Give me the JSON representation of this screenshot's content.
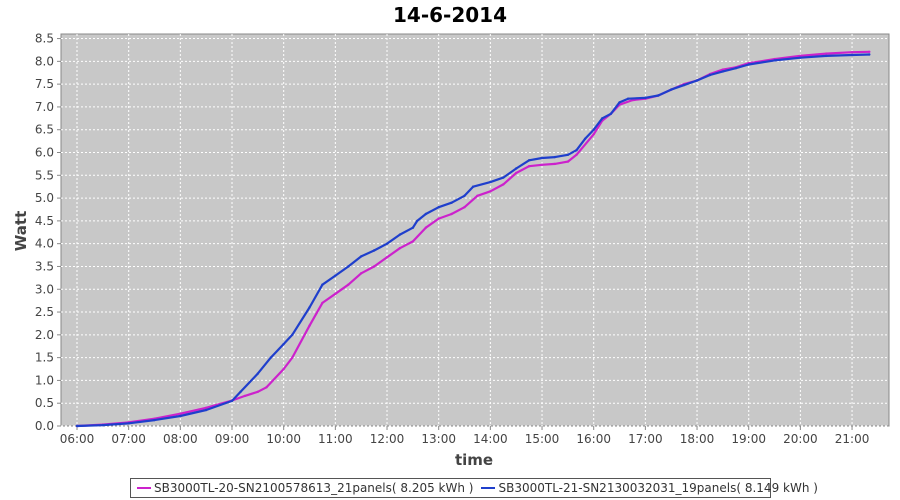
{
  "chart_data": {
    "type": "line",
    "title": "14-6-2014",
    "xlabel": "time",
    "ylabel": "Watt",
    "x_ticks": [
      "06:00",
      "07:00",
      "08:00",
      "09:00",
      "10:00",
      "11:00",
      "12:00",
      "13:00",
      "14:00",
      "15:00",
      "16:00",
      "17:00",
      "18:00",
      "19:00",
      "20:00",
      "21:00"
    ],
    "ylim": [
      0,
      8.6
    ],
    "y_ticks": [
      0.0,
      0.5,
      1.0,
      1.5,
      2.0,
      2.5,
      3.0,
      3.5,
      4.0,
      4.5,
      5.0,
      5.5,
      6.0,
      6.5,
      7.0,
      7.5,
      8.0,
      8.5
    ],
    "grid": true,
    "legend_position": "bottom",
    "plot_background": "#c8c8c8",
    "series": [
      {
        "name": "SB3000TL-20-SN2100578613_21panels( 8.205 kWh )",
        "color": "#cc22cc",
        "points": [
          [
            "06:00",
            0.0
          ],
          [
            "06:30",
            0.03
          ],
          [
            "07:00",
            0.08
          ],
          [
            "07:30",
            0.16
          ],
          [
            "08:00",
            0.27
          ],
          [
            "08:30",
            0.4
          ],
          [
            "09:00",
            0.56
          ],
          [
            "09:15",
            0.66
          ],
          [
            "09:30",
            0.75
          ],
          [
            "09:40",
            0.85
          ],
          [
            "10:00",
            1.25
          ],
          [
            "10:10",
            1.5
          ],
          [
            "10:30",
            2.2
          ],
          [
            "10:45",
            2.7
          ],
          [
            "11:00",
            2.9
          ],
          [
            "11:15",
            3.1
          ],
          [
            "11:30",
            3.35
          ],
          [
            "11:45",
            3.5
          ],
          [
            "12:00",
            3.7
          ],
          [
            "12:15",
            3.9
          ],
          [
            "12:30",
            4.05
          ],
          [
            "12:45",
            4.35
          ],
          [
            "13:00",
            4.55
          ],
          [
            "13:15",
            4.65
          ],
          [
            "13:30",
            4.8
          ],
          [
            "13:45",
            5.05
          ],
          [
            "14:00",
            5.15
          ],
          [
            "14:15",
            5.3
          ],
          [
            "14:30",
            5.55
          ],
          [
            "14:45",
            5.7
          ],
          [
            "15:00",
            5.73
          ],
          [
            "15:15",
            5.75
          ],
          [
            "15:30",
            5.8
          ],
          [
            "15:40",
            5.95
          ],
          [
            "16:00",
            6.4
          ],
          [
            "16:10",
            6.7
          ],
          [
            "16:20",
            6.85
          ],
          [
            "16:30",
            7.05
          ],
          [
            "16:45",
            7.15
          ],
          [
            "17:00",
            7.18
          ],
          [
            "17:15",
            7.25
          ],
          [
            "17:30",
            7.38
          ],
          [
            "17:45",
            7.5
          ],
          [
            "18:00",
            7.58
          ],
          [
            "18:15",
            7.72
          ],
          [
            "18:30",
            7.82
          ],
          [
            "18:45",
            7.87
          ],
          [
            "19:00",
            7.96
          ],
          [
            "19:30",
            8.05
          ],
          [
            "20:00",
            8.12
          ],
          [
            "20:30",
            8.17
          ],
          [
            "21:00",
            8.2
          ],
          [
            "21:20",
            8.21
          ]
        ]
      },
      {
        "name": "SB3000TL-21-SN2130032031_19panels( 8.149 kWh )",
        "color": "#1f3fcc",
        "points": [
          [
            "06:00",
            0.0
          ],
          [
            "06:30",
            0.02
          ],
          [
            "07:00",
            0.06
          ],
          [
            "07:30",
            0.13
          ],
          [
            "08:00",
            0.22
          ],
          [
            "08:30",
            0.35
          ],
          [
            "09:00",
            0.55
          ],
          [
            "09:10",
            0.75
          ],
          [
            "09:30",
            1.15
          ],
          [
            "09:45",
            1.5
          ],
          [
            "10:00",
            1.8
          ],
          [
            "10:10",
            2.0
          ],
          [
            "10:30",
            2.6
          ],
          [
            "10:45",
            3.1
          ],
          [
            "11:00",
            3.3
          ],
          [
            "11:15",
            3.5
          ],
          [
            "11:30",
            3.72
          ],
          [
            "11:45",
            3.85
          ],
          [
            "12:00",
            4.0
          ],
          [
            "12:15",
            4.2
          ],
          [
            "12:30",
            4.35
          ],
          [
            "12:35",
            4.5
          ],
          [
            "12:45",
            4.65
          ],
          [
            "13:00",
            4.8
          ],
          [
            "13:15",
            4.9
          ],
          [
            "13:30",
            5.05
          ],
          [
            "13:40",
            5.25
          ],
          [
            "14:00",
            5.35
          ],
          [
            "14:15",
            5.45
          ],
          [
            "14:30",
            5.65
          ],
          [
            "14:45",
            5.83
          ],
          [
            "15:00",
            5.88
          ],
          [
            "15:15",
            5.9
          ],
          [
            "15:30",
            5.95
          ],
          [
            "15:40",
            6.05
          ],
          [
            "15:50",
            6.3
          ],
          [
            "16:00",
            6.5
          ],
          [
            "16:10",
            6.75
          ],
          [
            "16:20",
            6.85
          ],
          [
            "16:30",
            7.1
          ],
          [
            "16:40",
            7.18
          ],
          [
            "17:00",
            7.2
          ],
          [
            "17:15",
            7.25
          ],
          [
            "17:30",
            7.38
          ],
          [
            "17:45",
            7.48
          ],
          [
            "18:00",
            7.58
          ],
          [
            "18:15",
            7.7
          ],
          [
            "18:30",
            7.78
          ],
          [
            "18:45",
            7.85
          ],
          [
            "19:00",
            7.93
          ],
          [
            "19:30",
            8.02
          ],
          [
            "20:00",
            8.08
          ],
          [
            "20:30",
            8.12
          ],
          [
            "21:00",
            8.14
          ],
          [
            "21:20",
            8.15
          ]
        ]
      }
    ]
  }
}
